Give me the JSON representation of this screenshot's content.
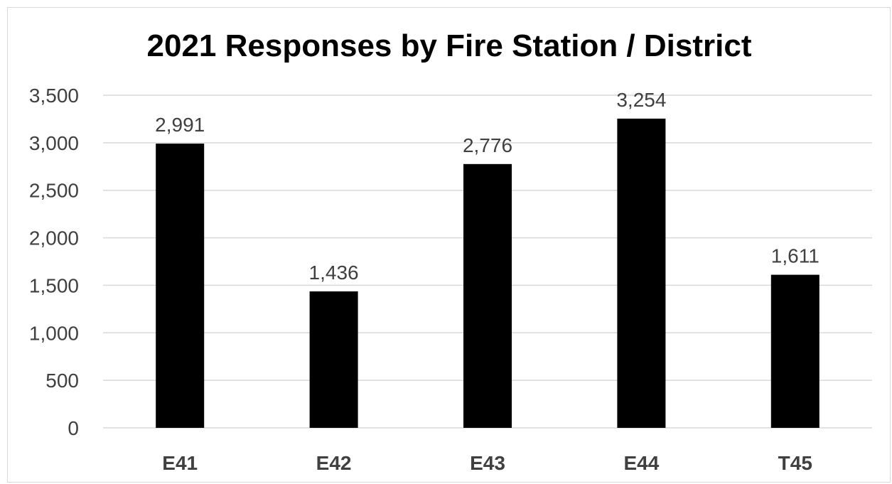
{
  "chart_data": {
    "type": "bar",
    "title": "2021 Responses by Fire Station / District",
    "categories": [
      "E41",
      "E42",
      "E43",
      "E44",
      "T45"
    ],
    "values": [
      2991,
      1436,
      2776,
      3254,
      1611
    ],
    "data_labels": [
      "2,991",
      "1,436",
      "2,776",
      "3,254",
      "1,611"
    ],
    "ylim": [
      0,
      3500
    ],
    "yticks": [
      0,
      500,
      1000,
      1500,
      2000,
      2500,
      3000,
      3500
    ],
    "ytick_labels": [
      "0",
      "500",
      "1,000",
      "1,500",
      "2,000",
      "2,500",
      "3,000",
      "3,500"
    ],
    "xlabel": "",
    "ylabel": "",
    "grid": true,
    "legend": "none",
    "bar_color": "#000000",
    "grid_color": "#d9d9d9",
    "text_color": "#404040"
  }
}
